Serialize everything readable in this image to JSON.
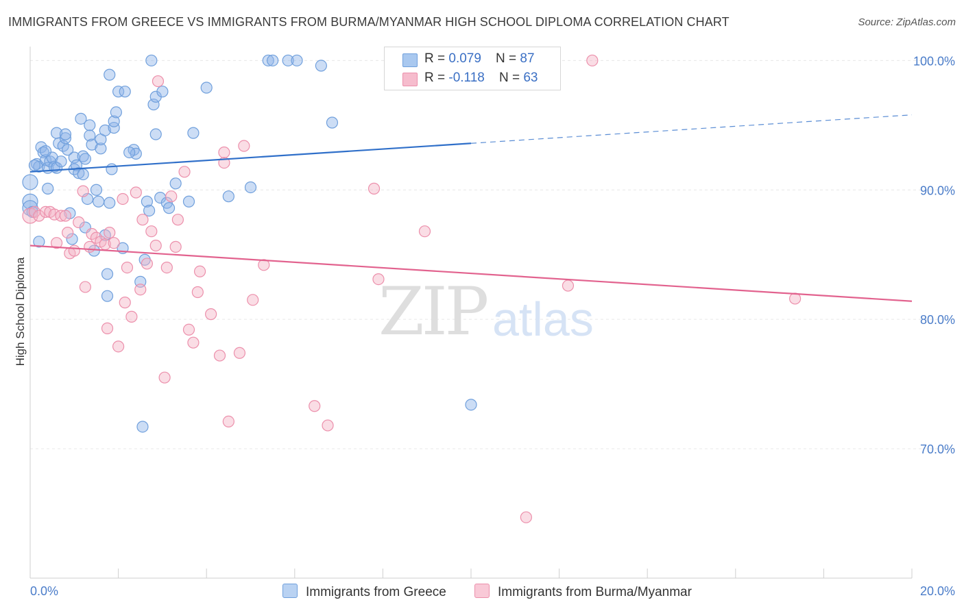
{
  "title": "IMMIGRANTS FROM GREECE VS IMMIGRANTS FROM BURMA/MYANMAR HIGH SCHOOL DIPLOMA CORRELATION CHART",
  "source": "Source: ZipAtlas.com",
  "watermark": {
    "zip": "ZIP",
    "atlas": "atlas"
  },
  "legend": {
    "rows": [
      {
        "r_label": "R = ",
        "r_value": "0.079",
        "n_label": "N = ",
        "n_value": "87",
        "color": "#a9c8ef"
      },
      {
        "r_label": "R = ",
        "r_value": "-0.118",
        "n_label": "N = ",
        "n_value": "63",
        "color": "#f6bccd"
      }
    ]
  },
  "bottom_legend": [
    {
      "label": "Immigrants from Greece",
      "color": "#b9d2f2"
    },
    {
      "label": "Immigrants from Burma/Myanmar",
      "color": "#f9c9d7"
    }
  ],
  "chart_data": {
    "type": "scatter",
    "title": "IMMIGRANTS FROM GREECE VS IMMIGRANTS FROM BURMA/MYANMAR HIGH SCHOOL DIPLOMA CORRELATION CHART",
    "xlabel": "",
    "ylabel": "High School Diploma",
    "xlim": [
      0,
      20
    ],
    "ylim": [
      60,
      101.5
    ],
    "x_tick_labels": [
      "0.0%",
      "20.0%"
    ],
    "y_ticks": [
      70,
      80,
      90,
      100
    ],
    "y_tick_labels": [
      "70.0%",
      "80.0%",
      "90.0%",
      "100.0%"
    ],
    "grid": true,
    "legend_position": "top-center",
    "series": [
      {
        "name": "Immigrants from Greece",
        "color": "#8db4e8",
        "stroke": "#6f9fdc",
        "trend": {
          "x0": 0,
          "y0": 91.4,
          "x1": 10,
          "y1": 93.6,
          "dash_to": 20,
          "dash_y": 95.8,
          "color": "#2f6fc9"
        },
        "points": [
          [
            0.0,
            90.6
          ],
          [
            0.0,
            89.1
          ],
          [
            0.0,
            88.6
          ],
          [
            0.05,
            88.3
          ],
          [
            0.2,
            86.0
          ],
          [
            0.15,
            92.0
          ],
          [
            0.2,
            91.8
          ],
          [
            0.25,
            93.3
          ],
          [
            0.3,
            92.9
          ],
          [
            0.35,
            92.3
          ],
          [
            0.4,
            91.7
          ],
          [
            0.4,
            90.1
          ],
          [
            0.45,
            92.2
          ],
          [
            0.5,
            92.5
          ],
          [
            0.55,
            91.8
          ],
          [
            0.6,
            91.7
          ],
          [
            0.6,
            94.4
          ],
          [
            0.65,
            93.6
          ],
          [
            0.7,
            92.2
          ],
          [
            0.75,
            93.4
          ],
          [
            0.8,
            94.0
          ],
          [
            0.8,
            94.3
          ],
          [
            0.85,
            93.1
          ],
          [
            0.9,
            88.2
          ],
          [
            0.95,
            86.2
          ],
          [
            1.0,
            92.5
          ],
          [
            1.0,
            91.6
          ],
          [
            1.05,
            91.9
          ],
          [
            1.1,
            91.3
          ],
          [
            1.15,
            95.5
          ],
          [
            1.2,
            92.6
          ],
          [
            1.25,
            92.4
          ],
          [
            1.25,
            87.1
          ],
          [
            1.3,
            89.3
          ],
          [
            1.35,
            95.0
          ],
          [
            1.35,
            94.2
          ],
          [
            1.4,
            93.5
          ],
          [
            1.45,
            85.3
          ],
          [
            1.5,
            90.0
          ],
          [
            1.55,
            89.1
          ],
          [
            1.6,
            93.2
          ],
          [
            1.6,
            93.9
          ],
          [
            1.7,
            86.5
          ],
          [
            1.7,
            94.6
          ],
          [
            1.75,
            83.5
          ],
          [
            1.75,
            81.8
          ],
          [
            1.8,
            89.0
          ],
          [
            1.8,
            98.9
          ],
          [
            1.85,
            91.6
          ],
          [
            1.9,
            94.8
          ],
          [
            1.9,
            95.3
          ],
          [
            1.95,
            96.0
          ],
          [
            2.0,
            97.6
          ],
          [
            2.1,
            85.5
          ],
          [
            2.15,
            97.6
          ],
          [
            2.35,
            93.1
          ],
          [
            2.4,
            92.8
          ],
          [
            2.5,
            82.9
          ],
          [
            2.55,
            71.7
          ],
          [
            2.6,
            84.6
          ],
          [
            2.65,
            89.1
          ],
          [
            2.7,
            88.4
          ],
          [
            2.75,
            100.0
          ],
          [
            2.8,
            96.6
          ],
          [
            2.85,
            94.3
          ],
          [
            2.85,
            97.2
          ],
          [
            2.95,
            89.4
          ],
          [
            3.0,
            97.6
          ],
          [
            3.1,
            89.0
          ],
          [
            3.3,
            90.5
          ],
          [
            3.6,
            89.1
          ],
          [
            3.7,
            94.4
          ],
          [
            4.0,
            97.9
          ],
          [
            4.5,
            89.5
          ],
          [
            5.0,
            90.2
          ],
          [
            5.4,
            100.0
          ],
          [
            5.5,
            100.0
          ],
          [
            5.85,
            100.0
          ],
          [
            6.05,
            100.0
          ],
          [
            6.6,
            99.6
          ],
          [
            6.85,
            95.2
          ],
          [
            10.0,
            73.4
          ],
          [
            0.1,
            91.9
          ],
          [
            0.35,
            93.0
          ],
          [
            1.2,
            91.2
          ],
          [
            2.25,
            92.9
          ],
          [
            3.15,
            88.6
          ]
        ]
      },
      {
        "name": "Immigrants from Burma/Myanmar",
        "color": "#f5b3c6",
        "stroke": "#ec8fab",
        "trend": {
          "x0": 0,
          "y0": 85.7,
          "x1": 20,
          "y1": 81.4,
          "color": "#e2628e"
        },
        "points": [
          [
            0.0,
            88.0
          ],
          [
            0.1,
            88.3
          ],
          [
            0.2,
            88.0
          ],
          [
            0.35,
            88.3
          ],
          [
            0.45,
            88.3
          ],
          [
            0.55,
            88.1
          ],
          [
            0.6,
            85.9
          ],
          [
            0.7,
            88.0
          ],
          [
            0.8,
            88.0
          ],
          [
            0.85,
            86.7
          ],
          [
            0.9,
            85.1
          ],
          [
            1.0,
            85.3
          ],
          [
            1.1,
            87.5
          ],
          [
            1.2,
            89.9
          ],
          [
            1.25,
            82.5
          ],
          [
            1.35,
            85.6
          ],
          [
            1.4,
            86.6
          ],
          [
            1.5,
            86.3
          ],
          [
            1.6,
            86.0
          ],
          [
            1.7,
            85.8
          ],
          [
            1.75,
            79.3
          ],
          [
            1.8,
            86.7
          ],
          [
            1.9,
            85.9
          ],
          [
            2.0,
            77.9
          ],
          [
            2.1,
            89.3
          ],
          [
            2.15,
            81.3
          ],
          [
            2.2,
            84.0
          ],
          [
            2.3,
            80.2
          ],
          [
            2.4,
            89.8
          ],
          [
            2.5,
            82.3
          ],
          [
            2.55,
            87.7
          ],
          [
            2.65,
            84.3
          ],
          [
            2.75,
            86.8
          ],
          [
            2.85,
            85.7
          ],
          [
            2.9,
            98.4
          ],
          [
            3.05,
            75.5
          ],
          [
            3.1,
            84.0
          ],
          [
            3.2,
            89.5
          ],
          [
            3.3,
            85.6
          ],
          [
            3.35,
            87.7
          ],
          [
            3.5,
            91.4
          ],
          [
            3.6,
            79.2
          ],
          [
            3.7,
            78.2
          ],
          [
            3.8,
            82.1
          ],
          [
            3.85,
            83.7
          ],
          [
            4.1,
            80.4
          ],
          [
            4.3,
            77.2
          ],
          [
            4.4,
            92.1
          ],
          [
            4.4,
            92.9
          ],
          [
            4.5,
            72.1
          ],
          [
            4.75,
            77.4
          ],
          [
            4.85,
            93.4
          ],
          [
            5.05,
            81.5
          ],
          [
            5.3,
            84.2
          ],
          [
            6.45,
            73.3
          ],
          [
            6.75,
            71.8
          ],
          [
            7.8,
            90.1
          ],
          [
            7.9,
            83.1
          ],
          [
            8.95,
            86.8
          ],
          [
            11.25,
            64.7
          ],
          [
            12.2,
            82.6
          ],
          [
            12.75,
            100.0
          ],
          [
            17.35,
            81.6
          ]
        ]
      }
    ]
  }
}
